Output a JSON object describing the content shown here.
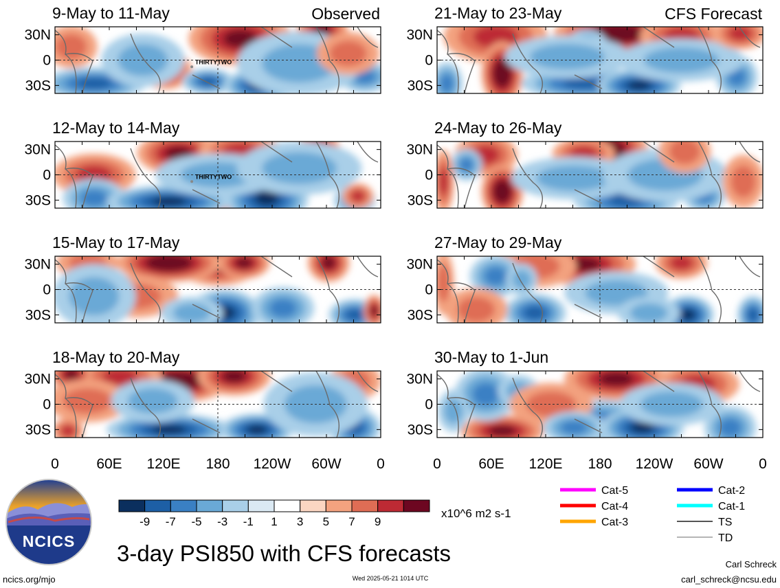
{
  "chart_data": {
    "type": "heatmap",
    "title": "3-day PSI850 with CFS forecasts",
    "units": "x10^6 m2 s-1",
    "column_labels": [
      "Observed",
      "CFS Forecast"
    ],
    "lat_ticks": [
      "30N",
      "0",
      "30S"
    ],
    "lon_ticks": [
      "0",
      "60E",
      "120E",
      "180",
      "120W",
      "60W",
      "0"
    ],
    "panels": [
      {
        "title": "9-May to 11-May",
        "storm": "THIRTYTWO",
        "blobs": [
          [
            0.55,
            0.15,
            0.06,
            0.22,
            1
          ],
          [
            0.57,
            0.18,
            0.1,
            0.25,
            0.75
          ],
          [
            0.82,
            0.1,
            0.05,
            0.25,
            0.7
          ],
          [
            0.34,
            0.65,
            0.05,
            0.18,
            0.7
          ],
          [
            0.47,
            0.82,
            0.05,
            0.12,
            -0.8
          ],
          [
            0.12,
            0.85,
            0.1,
            0.15,
            -0.7
          ],
          [
            0.63,
            0.88,
            0.07,
            0.15,
            -1
          ],
          [
            0.95,
            0.75,
            0.05,
            0.15,
            -0.6
          ],
          [
            0.27,
            0.5,
            0.08,
            0.25,
            -0.35
          ],
          [
            0.75,
            0.55,
            0.12,
            0.3,
            -0.3
          ],
          [
            0.05,
            0.3,
            0.05,
            0.2,
            0.3
          ],
          [
            0.9,
            0.4,
            0.06,
            0.2,
            0.3
          ]
        ]
      },
      {
        "title": "12-May to 14-May",
        "storm": "THIRTYTWO",
        "blobs": [
          [
            0.38,
            0.18,
            0.08,
            0.2,
            0.75
          ],
          [
            0.57,
            0.15,
            0.08,
            0.18,
            0.6
          ],
          [
            0.81,
            0.12,
            0.04,
            0.18,
            0.75
          ],
          [
            0.12,
            0.5,
            0.08,
            0.2,
            0.5
          ],
          [
            0.52,
            0.78,
            0.06,
            0.2,
            0.55
          ],
          [
            0.12,
            0.85,
            0.06,
            0.18,
            -0.6
          ],
          [
            0.35,
            0.9,
            0.12,
            0.15,
            -0.9
          ],
          [
            0.65,
            0.85,
            0.08,
            0.25,
            -1
          ],
          [
            0.92,
            0.88,
            0.04,
            0.15,
            -0.6
          ],
          [
            0.5,
            0.5,
            0.12,
            0.2,
            -0.35
          ],
          [
            0.75,
            0.4,
            0.12,
            0.25,
            -0.3
          ],
          [
            0.93,
            0.82,
            0.03,
            0.12,
            0.5
          ]
        ]
      },
      {
        "title": "15-May to 17-May",
        "storm": "",
        "blobs": [
          [
            0.5,
            0.12,
            0.08,
            0.2,
            0.75
          ],
          [
            0.35,
            0.1,
            0.1,
            0.18,
            0.95
          ],
          [
            0.58,
            0.1,
            0.05,
            0.15,
            0.7
          ],
          [
            0.84,
            0.1,
            0.04,
            0.18,
            0.75
          ],
          [
            0.1,
            0.1,
            0.06,
            0.15,
            0.35
          ],
          [
            0.25,
            0.6,
            0.08,
            0.2,
            0.35
          ],
          [
            0.52,
            0.85,
            0.07,
            0.22,
            -0.95
          ],
          [
            0.7,
            0.78,
            0.06,
            0.2,
            -0.6
          ],
          [
            0.92,
            0.88,
            0.05,
            0.15,
            -0.85
          ],
          [
            0.98,
            0.82,
            0.02,
            0.15,
            0.7
          ],
          [
            0.42,
            0.85,
            0.06,
            0.15,
            -0.4
          ],
          [
            0.12,
            0.6,
            0.08,
            0.3,
            -0.3
          ]
        ]
      },
      {
        "title": "18-May to 20-May",
        "storm": "",
        "blobs": [
          [
            0.38,
            0.15,
            0.1,
            0.2,
            0.95
          ],
          [
            0.55,
            0.08,
            0.07,
            0.18,
            0.75
          ],
          [
            0.2,
            0.1,
            0.08,
            0.2,
            0.5
          ],
          [
            0.05,
            0.05,
            0.04,
            0.15,
            0.7
          ],
          [
            0.92,
            0.15,
            0.05,
            0.18,
            0.4
          ],
          [
            0.1,
            0.45,
            0.08,
            0.2,
            0.3
          ],
          [
            0.35,
            0.88,
            0.12,
            0.15,
            -0.9
          ],
          [
            0.62,
            0.88,
            0.07,
            0.15,
            -1
          ],
          [
            0.92,
            0.85,
            0.05,
            0.18,
            -0.7
          ],
          [
            0.04,
            0.9,
            0.03,
            0.12,
            0.6
          ],
          [
            0.8,
            0.5,
            0.1,
            0.3,
            -0.3
          ],
          [
            0.3,
            0.45,
            0.08,
            0.2,
            -0.3
          ]
        ]
      },
      {
        "title": "21-May to 23-May",
        "storm": "",
        "blobs": [
          [
            0.55,
            0.1,
            0.12,
            0.2,
            0.9
          ],
          [
            0.75,
            0.15,
            0.08,
            0.2,
            0.65
          ],
          [
            0.18,
            0.15,
            0.1,
            0.25,
            0.5
          ],
          [
            0.2,
            0.7,
            0.04,
            0.3,
            0.9
          ],
          [
            0.45,
            0.85,
            0.12,
            0.15,
            -0.75
          ],
          [
            0.62,
            0.88,
            0.08,
            0.15,
            -1
          ],
          [
            0.03,
            0.85,
            0.03,
            0.2,
            -0.6
          ],
          [
            0.92,
            0.75,
            0.04,
            0.2,
            -0.5
          ],
          [
            0.46,
            0.28,
            0.04,
            0.15,
            -0.6
          ],
          [
            0.4,
            0.45,
            0.12,
            0.2,
            -0.3
          ],
          [
            0.75,
            0.5,
            0.12,
            0.2,
            -0.3
          ],
          [
            0.93,
            0.1,
            0.05,
            0.15,
            0.6
          ]
        ]
      },
      {
        "title": "24-May to 26-May",
        "storm": "",
        "blobs": [
          [
            0.52,
            0.12,
            0.08,
            0.22,
            0.9
          ],
          [
            0.45,
            0.18,
            0.06,
            0.15,
            0.55
          ],
          [
            0.15,
            0.2,
            0.06,
            0.2,
            0.6
          ],
          [
            0.2,
            0.75,
            0.04,
            0.25,
            0.9
          ],
          [
            0.58,
            0.88,
            0.1,
            0.18,
            -0.85
          ],
          [
            0.82,
            0.82,
            0.04,
            0.15,
            -0.6
          ],
          [
            0.09,
            0.35,
            0.03,
            0.15,
            -0.55
          ],
          [
            0.42,
            0.55,
            0.12,
            0.2,
            -0.3
          ],
          [
            0.7,
            0.5,
            0.12,
            0.25,
            -0.3
          ],
          [
            0.02,
            0.6,
            0.02,
            0.3,
            0.5
          ],
          [
            0.76,
            0.15,
            0.05,
            0.2,
            0.4
          ],
          [
            0.94,
            0.6,
            0.04,
            0.25,
            0.3
          ]
        ]
      },
      {
        "title": "27-May to 29-May",
        "storm": "",
        "blobs": [
          [
            0.45,
            0.12,
            0.1,
            0.2,
            0.85
          ],
          [
            0.75,
            0.1,
            0.05,
            0.15,
            0.6
          ],
          [
            0.3,
            0.15,
            0.08,
            0.2,
            0.4
          ],
          [
            0.18,
            0.3,
            0.05,
            0.2,
            -0.6
          ],
          [
            0.26,
            0.35,
            0.03,
            0.15,
            -0.45
          ],
          [
            0.3,
            0.85,
            0.06,
            0.18,
            -0.85
          ],
          [
            0.77,
            0.88,
            0.05,
            0.18,
            -0.95
          ],
          [
            0.97,
            0.88,
            0.03,
            0.18,
            -0.8
          ],
          [
            0.55,
            0.55,
            0.1,
            0.2,
            -0.35
          ],
          [
            0.12,
            0.8,
            0.06,
            0.2,
            0.35
          ],
          [
            0.65,
            0.85,
            0.06,
            0.15,
            -0.4
          ],
          [
            0.02,
            0.4,
            0.02,
            0.3,
            0.4
          ]
        ]
      },
      {
        "title": "30-May to 1-Jun",
        "storm": "",
        "blobs": [
          [
            0.55,
            0.12,
            0.1,
            0.2,
            0.7
          ],
          [
            0.8,
            0.2,
            0.08,
            0.2,
            0.5
          ],
          [
            0.2,
            0.9,
            0.08,
            0.15,
            0.85
          ],
          [
            0.15,
            0.35,
            0.06,
            0.25,
            -0.55
          ],
          [
            0.25,
            0.3,
            0.04,
            0.15,
            -0.45
          ],
          [
            0.5,
            0.75,
            0.1,
            0.2,
            -0.6
          ],
          [
            0.63,
            0.85,
            0.08,
            0.18,
            -1
          ],
          [
            0.9,
            0.85,
            0.05,
            0.2,
            -0.5
          ],
          [
            0.35,
            0.5,
            0.08,
            0.2,
            0.3
          ],
          [
            0.72,
            0.5,
            0.1,
            0.2,
            -0.3
          ],
          [
            0.05,
            0.6,
            0.03,
            0.2,
            -0.4
          ],
          [
            0.42,
            0.85,
            0.06,
            0.15,
            -0.5
          ]
        ]
      }
    ],
    "colorbar": {
      "labels": [
        "-9",
        "-7",
        "-5",
        "-3",
        "-1",
        "1",
        "3",
        "5",
        "7",
        "9"
      ],
      "colors": [
        "#0b2f5e",
        "#1d5fa5",
        "#3a80c4",
        "#6aa9d6",
        "#a9cfe8",
        "#dbe9f3",
        "#ffffff",
        "#fbd6c2",
        "#f3a27f",
        "#df6d55",
        "#bd2a34",
        "#6d0721"
      ]
    },
    "legend": {
      "items": [
        {
          "label": "Cat-5",
          "color": "#ff00ff"
        },
        {
          "label": "Cat-4",
          "color": "#ff0000"
        },
        {
          "label": "Cat-3",
          "color": "#ffa500"
        },
        {
          "label": "Cat-2",
          "color": "#0000ff"
        },
        {
          "label": "Cat-1",
          "color": "#00ffff"
        },
        {
          "label": "TS",
          "color": "#555555"
        },
        {
          "label": "TD",
          "color": "#b5b5b5"
        }
      ]
    }
  },
  "logo_text": "NCICS",
  "footer": {
    "website": "ncics.org/mjo",
    "timestamp": "Wed 2025-05-21 1014 UTC",
    "author": "Carl Schreck",
    "email": "carl_schreck@ncsu.edu"
  }
}
